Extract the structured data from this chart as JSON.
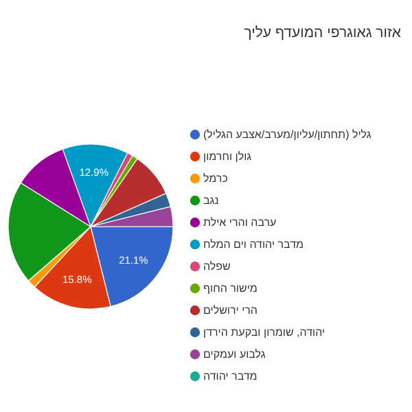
{
  "chart_data": {
    "type": "pie",
    "title": "אזור גאוגרפי המועדף עליך",
    "categories": [
      "גליל (תחתון/עליון/מערב/אצבע הגליל)",
      "גולן וחרמון",
      "כרמל",
      "נגב",
      "ערבה והרי אילת",
      "מדבר יהודה וים המלח",
      "שפלה",
      "מישור החוף",
      "הרי ירושלים",
      "יהודה, שומרון ובקעת הירדן",
      "גלבוע ועמקים",
      "מדבר יהודה"
    ],
    "values": [
      21.1,
      15.8,
      1.7,
      20.3,
      10.6,
      12.9,
      1.1,
      1.1,
      8.8,
      2.7,
      3.9,
      0
    ],
    "colors": [
      "#3366cc",
      "#dc3912",
      "#ff9900",
      "#109618",
      "#990099",
      "#0099c6",
      "#dd4477",
      "#66aa00",
      "#b82e2e",
      "#316395",
      "#994499",
      "#22aa99"
    ],
    "value_labels": [
      "21.1%",
      "15.8%",
      null,
      null,
      null,
      "12.9%",
      null,
      null,
      null,
      null,
      null,
      null
    ],
    "legend": "right"
  }
}
